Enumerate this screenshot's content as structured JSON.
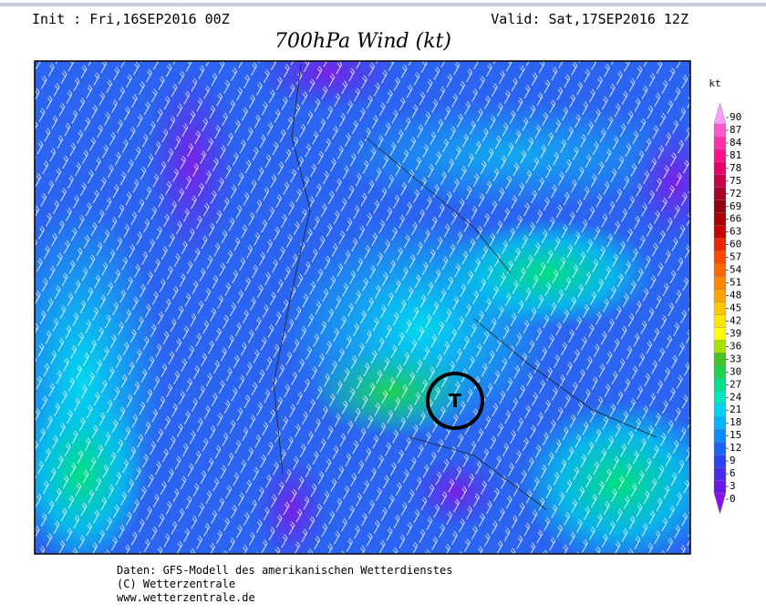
{
  "header": {
    "init": "Init : Fri,16SEP2016 00Z",
    "valid": "Valid: Sat,17SEP2016 12Z",
    "title": "700hPa Wind (kt)"
  },
  "colorbar": {
    "unit": "kt",
    "levels": [
      0,
      3,
      6,
      9,
      12,
      15,
      18,
      21,
      24,
      27,
      30,
      33,
      36,
      39,
      42,
      45,
      48,
      51,
      54,
      57,
      60,
      63,
      66,
      69,
      72,
      75,
      78,
      81,
      84,
      87,
      90
    ],
    "colors": [
      "#8a10e8",
      "#6a18e8",
      "#4a28ec",
      "#2a44f2",
      "#1a64fa",
      "#0a8cff",
      "#00b4ff",
      "#00d4f4",
      "#00e4c0",
      "#00e08c",
      "#20d050",
      "#44c428",
      "#a8e000",
      "#ffff00",
      "#ffe400",
      "#ffc400",
      "#ffa400",
      "#ff8800",
      "#ff6800",
      "#ff4800",
      "#e82800",
      "#c80000",
      "#a80000",
      "#900010",
      "#a80028",
      "#c80048",
      "#e80068",
      "#ff1088",
      "#ff30a8",
      "#ff58cc",
      "#ff9cff"
    ]
  },
  "map": {
    "low_label": "T"
  },
  "footer": {
    "lines": [
      "Daten: GFS-Modell des amerikanischen Wetterdienstes",
      "(C) Wetterzentrale",
      "www.wetterzentrale.de"
    ]
  }
}
